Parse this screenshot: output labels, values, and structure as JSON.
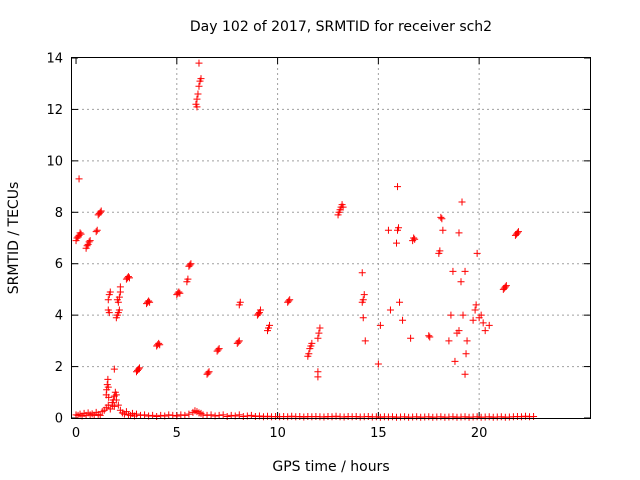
{
  "chart_data": {
    "type": "scatter",
    "title": "Day 102 of 2017, SRMTID for receiver sch2",
    "xlabel": "GPS time / hours",
    "ylabel": "SRMTID / TECUs",
    "xlim": [
      -0.2,
      25.5
    ],
    "ylim": [
      0,
      14
    ],
    "xticks": [
      0,
      5,
      10,
      15,
      20
    ],
    "yticks": [
      0,
      2,
      4,
      6,
      8,
      10,
      12,
      14
    ],
    "grid": true,
    "marker": "plus",
    "color": "#ff0000",
    "series": [
      {
        "name": "baseline",
        "points": [
          [
            0.0,
            0.12
          ],
          [
            0.1,
            0.1
          ],
          [
            0.2,
            0.15
          ],
          [
            0.3,
            0.08
          ],
          [
            0.4,
            0.18
          ],
          [
            0.5,
            0.1
          ],
          [
            0.6,
            0.2
          ],
          [
            0.7,
            0.12
          ],
          [
            0.8,
            0.16
          ],
          [
            0.9,
            0.1
          ],
          [
            1.0,
            0.22
          ],
          [
            1.1,
            0.14
          ],
          [
            1.2,
            0.1
          ],
          [
            1.3,
            0.25
          ],
          [
            1.4,
            0.3
          ],
          [
            1.5,
            0.4
          ],
          [
            1.6,
            0.5
          ],
          [
            1.7,
            0.35
          ],
          [
            1.8,
            0.6
          ],
          [
            1.9,
            0.45
          ],
          [
            2.0,
            0.7
          ],
          [
            2.1,
            0.5
          ],
          [
            2.2,
            0.3
          ],
          [
            2.3,
            0.2
          ],
          [
            2.4,
            0.15
          ],
          [
            2.5,
            0.25
          ],
          [
            2.6,
            0.12
          ],
          [
            2.7,
            0.1
          ],
          [
            2.8,
            0.18
          ],
          [
            2.9,
            0.08
          ],
          [
            3.0,
            0.15
          ],
          [
            3.2,
            0.1
          ],
          [
            3.4,
            0.12
          ],
          [
            3.6,
            0.08
          ],
          [
            3.8,
            0.1
          ],
          [
            4.0,
            0.06
          ],
          [
            4.2,
            0.1
          ],
          [
            4.4,
            0.08
          ],
          [
            4.6,
            0.12
          ],
          [
            4.8,
            0.1
          ],
          [
            5.0,
            0.08
          ],
          [
            5.2,
            0.12
          ],
          [
            5.4,
            0.1
          ],
          [
            5.6,
            0.15
          ],
          [
            5.8,
            0.22
          ],
          [
            5.9,
            0.28
          ],
          [
            6.0,
            0.25
          ],
          [
            6.1,
            0.2
          ],
          [
            6.2,
            0.18
          ],
          [
            6.3,
            0.12
          ],
          [
            6.5,
            0.1
          ],
          [
            6.7,
            0.12
          ],
          [
            6.9,
            0.08
          ],
          [
            7.1,
            0.1
          ],
          [
            7.3,
            0.12
          ],
          [
            7.5,
            0.06
          ],
          [
            7.7,
            0.1
          ],
          [
            7.9,
            0.08
          ],
          [
            8.1,
            0.12
          ],
          [
            8.3,
            0.06
          ],
          [
            8.5,
            0.08
          ],
          [
            8.7,
            0.1
          ],
          [
            8.9,
            0.06
          ],
          [
            9.1,
            0.08
          ],
          [
            9.3,
            0.05
          ],
          [
            9.5,
            0.07
          ],
          [
            9.7,
            0.05
          ],
          [
            9.9,
            0.06
          ],
          [
            10.1,
            0.05
          ],
          [
            10.3,
            0.06
          ],
          [
            10.5,
            0.05
          ],
          [
            10.7,
            0.07
          ],
          [
            10.9,
            0.05
          ],
          [
            11.1,
            0.06
          ],
          [
            11.3,
            0.04
          ],
          [
            11.5,
            0.06
          ],
          [
            11.7,
            0.05
          ],
          [
            11.9,
            0.06
          ],
          [
            12.1,
            0.05
          ],
          [
            12.3,
            0.04
          ],
          [
            12.5,
            0.06
          ],
          [
            12.7,
            0.05
          ],
          [
            12.9,
            0.07
          ],
          [
            13.1,
            0.05
          ],
          [
            13.3,
            0.04
          ],
          [
            13.5,
            0.06
          ],
          [
            13.7,
            0.05
          ],
          [
            13.9,
            0.06
          ],
          [
            14.1,
            0.04
          ],
          [
            14.3,
            0.05
          ],
          [
            14.5,
            0.06
          ],
          [
            14.7,
            0.04
          ],
          [
            14.9,
            0.05
          ],
          [
            15.1,
            0.03
          ],
          [
            15.3,
            0.05
          ],
          [
            15.5,
            0.04
          ],
          [
            15.7,
            0.05
          ],
          [
            15.9,
            0.03
          ],
          [
            16.1,
            0.04
          ],
          [
            16.3,
            0.05
          ],
          [
            16.5,
            0.03
          ],
          [
            16.7,
            0.04
          ],
          [
            16.9,
            0.05
          ],
          [
            17.1,
            0.03
          ],
          [
            17.3,
            0.04
          ],
          [
            17.5,
            0.05
          ],
          [
            17.7,
            0.03
          ],
          [
            17.9,
            0.04
          ],
          [
            18.1,
            0.05
          ],
          [
            18.3,
            0.03
          ],
          [
            18.5,
            0.04
          ],
          [
            18.7,
            0.05
          ],
          [
            18.9,
            0.03
          ],
          [
            19.1,
            0.04
          ],
          [
            19.3,
            0.05
          ],
          [
            19.5,
            0.03
          ],
          [
            19.7,
            0.04
          ],
          [
            19.9,
            0.05
          ],
          [
            20.1,
            0.03
          ],
          [
            20.3,
            0.04
          ],
          [
            20.5,
            0.05
          ],
          [
            20.7,
            0.03
          ],
          [
            20.9,
            0.04
          ],
          [
            21.1,
            0.05
          ],
          [
            21.3,
            0.03
          ],
          [
            21.5,
            0.04
          ],
          [
            21.7,
            0.05
          ],
          [
            21.9,
            0.06
          ],
          [
            22.1,
            0.05
          ],
          [
            22.3,
            0.07
          ],
          [
            22.5,
            0.05
          ],
          [
            22.7,
            0.06
          ]
        ]
      },
      {
        "name": "arcs",
        "points": [
          [
            0.0,
            6.9
          ],
          [
            0.05,
            7.0
          ],
          [
            0.1,
            7.05
          ],
          [
            0.15,
            7.1
          ],
          [
            0.2,
            7.2
          ],
          [
            0.25,
            7.15
          ],
          [
            0.15,
            9.3
          ],
          [
            0.5,
            6.6
          ],
          [
            0.55,
            6.7
          ],
          [
            0.6,
            6.75
          ],
          [
            0.65,
            6.85
          ],
          [
            0.7,
            6.9
          ],
          [
            1.0,
            7.25
          ],
          [
            1.05,
            7.3
          ],
          [
            1.1,
            7.9
          ],
          [
            1.15,
            7.95
          ],
          [
            1.2,
            8.0
          ],
          [
            1.25,
            8.05
          ],
          [
            1.5,
            0.9
          ],
          [
            1.52,
            1.1
          ],
          [
            1.55,
            1.3
          ],
          [
            1.58,
            1.5
          ],
          [
            1.6,
            1.2
          ],
          [
            1.62,
            0.8
          ],
          [
            1.6,
            4.2
          ],
          [
            1.65,
            4.1
          ],
          [
            1.6,
            4.6
          ],
          [
            1.65,
            4.8
          ],
          [
            1.7,
            4.9
          ],
          [
            1.8,
            0.5
          ],
          [
            1.85,
            0.7
          ],
          [
            1.9,
            0.85
          ],
          [
            1.95,
            1.0
          ],
          [
            2.0,
            0.9
          ],
          [
            1.9,
            1.9
          ],
          [
            2.0,
            3.9
          ],
          [
            2.05,
            4.0
          ],
          [
            2.1,
            4.1
          ],
          [
            2.15,
            4.2
          ],
          [
            2.1,
            4.5
          ],
          [
            2.15,
            4.7
          ],
          [
            2.2,
            4.9
          ],
          [
            2.2,
            5.1
          ],
          [
            2.05,
            4.6
          ],
          [
            2.5,
            5.4
          ],
          [
            2.55,
            5.45
          ],
          [
            2.6,
            5.5
          ],
          [
            2.65,
            5.45
          ],
          [
            3.0,
            1.8
          ],
          [
            3.05,
            1.85
          ],
          [
            3.1,
            1.9
          ],
          [
            3.15,
            1.95
          ],
          [
            3.5,
            4.45
          ],
          [
            3.55,
            4.5
          ],
          [
            3.6,
            4.55
          ],
          [
            3.65,
            4.5
          ],
          [
            4.0,
            2.8
          ],
          [
            4.05,
            2.85
          ],
          [
            4.1,
            2.9
          ],
          [
            4.15,
            2.85
          ],
          [
            5.0,
            4.8
          ],
          [
            5.05,
            4.85
          ],
          [
            5.1,
            4.9
          ],
          [
            5.15,
            4.85
          ],
          [
            5.5,
            5.3
          ],
          [
            5.55,
            5.4
          ],
          [
            5.6,
            5.9
          ],
          [
            5.65,
            5.95
          ],
          [
            5.7,
            6.0
          ],
          [
            5.95,
            12.2
          ],
          [
            6.0,
            12.4
          ],
          [
            6.05,
            12.6
          ],
          [
            6.1,
            12.9
          ],
          [
            6.15,
            13.1
          ],
          [
            6.2,
            13.2
          ],
          [
            6.1,
            13.8
          ],
          [
            6.0,
            12.1
          ],
          [
            6.5,
            1.7
          ],
          [
            6.55,
            1.75
          ],
          [
            6.6,
            1.8
          ],
          [
            7.0,
            2.6
          ],
          [
            7.05,
            2.65
          ],
          [
            7.1,
            2.7
          ],
          [
            8.0,
            2.9
          ],
          [
            8.05,
            2.95
          ],
          [
            8.1,
            3.0
          ],
          [
            8.1,
            4.4
          ],
          [
            8.15,
            4.5
          ],
          [
            9.0,
            4.0
          ],
          [
            9.05,
            4.05
          ],
          [
            9.1,
            4.1
          ],
          [
            9.15,
            4.2
          ],
          [
            9.5,
            3.4
          ],
          [
            9.55,
            3.5
          ],
          [
            9.6,
            3.6
          ],
          [
            10.5,
            4.5
          ],
          [
            10.55,
            4.55
          ],
          [
            10.6,
            4.6
          ],
          [
            11.5,
            2.4
          ],
          [
            11.55,
            2.5
          ],
          [
            11.6,
            2.7
          ],
          [
            11.65,
            2.8
          ],
          [
            11.7,
            2.9
          ],
          [
            12.0,
            1.6
          ],
          [
            12.0,
            1.8
          ],
          [
            12.0,
            3.1
          ],
          [
            12.05,
            3.3
          ],
          [
            12.1,
            3.5
          ],
          [
            13.0,
            7.9
          ],
          [
            13.05,
            8.0
          ],
          [
            13.1,
            8.1
          ],
          [
            13.15,
            8.2
          ],
          [
            13.2,
            8.3
          ],
          [
            13.25,
            8.2
          ],
          [
            14.2,
            5.65
          ],
          [
            14.2,
            4.5
          ],
          [
            14.25,
            4.6
          ],
          [
            14.3,
            4.8
          ],
          [
            14.25,
            3.9
          ],
          [
            14.35,
            3.0
          ],
          [
            15.0,
            2.1
          ],
          [
            15.1,
            3.6
          ],
          [
            15.5,
            7.3
          ],
          [
            15.6,
            4.2
          ],
          [
            15.9,
            6.8
          ],
          [
            15.95,
            7.3
          ],
          [
            16.0,
            7.4
          ],
          [
            15.95,
            9.0
          ],
          [
            16.05,
            4.5
          ],
          [
            16.2,
            3.8
          ],
          [
            16.6,
            3.1
          ],
          [
            16.7,
            6.9
          ],
          [
            16.75,
            7.0
          ],
          [
            16.8,
            6.95
          ],
          [
            17.5,
            3.2
          ],
          [
            17.55,
            3.15
          ],
          [
            18.0,
            6.4
          ],
          [
            18.05,
            6.5
          ],
          [
            18.1,
            7.8
          ],
          [
            18.15,
            7.75
          ],
          [
            18.2,
            7.3
          ],
          [
            18.5,
            3.0
          ],
          [
            18.6,
            4.0
          ],
          [
            18.7,
            5.7
          ],
          [
            18.8,
            2.2
          ],
          [
            18.9,
            3.3
          ],
          [
            19.0,
            3.4
          ],
          [
            19.0,
            7.2
          ],
          [
            19.1,
            5.3
          ],
          [
            19.15,
            8.4
          ],
          [
            19.2,
            4.0
          ],
          [
            19.3,
            5.7
          ],
          [
            19.3,
            1.7
          ],
          [
            19.35,
            2.5
          ],
          [
            19.4,
            3.0
          ],
          [
            19.7,
            3.8
          ],
          [
            19.8,
            4.2
          ],
          [
            19.85,
            4.4
          ],
          [
            19.9,
            6.4
          ],
          [
            20.0,
            3.9
          ],
          [
            20.1,
            4.0
          ],
          [
            20.2,
            3.7
          ],
          [
            20.3,
            3.4
          ],
          [
            20.5,
            3.6
          ],
          [
            21.2,
            5.0
          ],
          [
            21.25,
            5.05
          ],
          [
            21.3,
            5.1
          ],
          [
            21.35,
            5.15
          ],
          [
            21.8,
            7.1
          ],
          [
            21.85,
            7.15
          ],
          [
            21.9,
            7.2
          ],
          [
            21.95,
            7.25
          ]
        ]
      }
    ]
  }
}
